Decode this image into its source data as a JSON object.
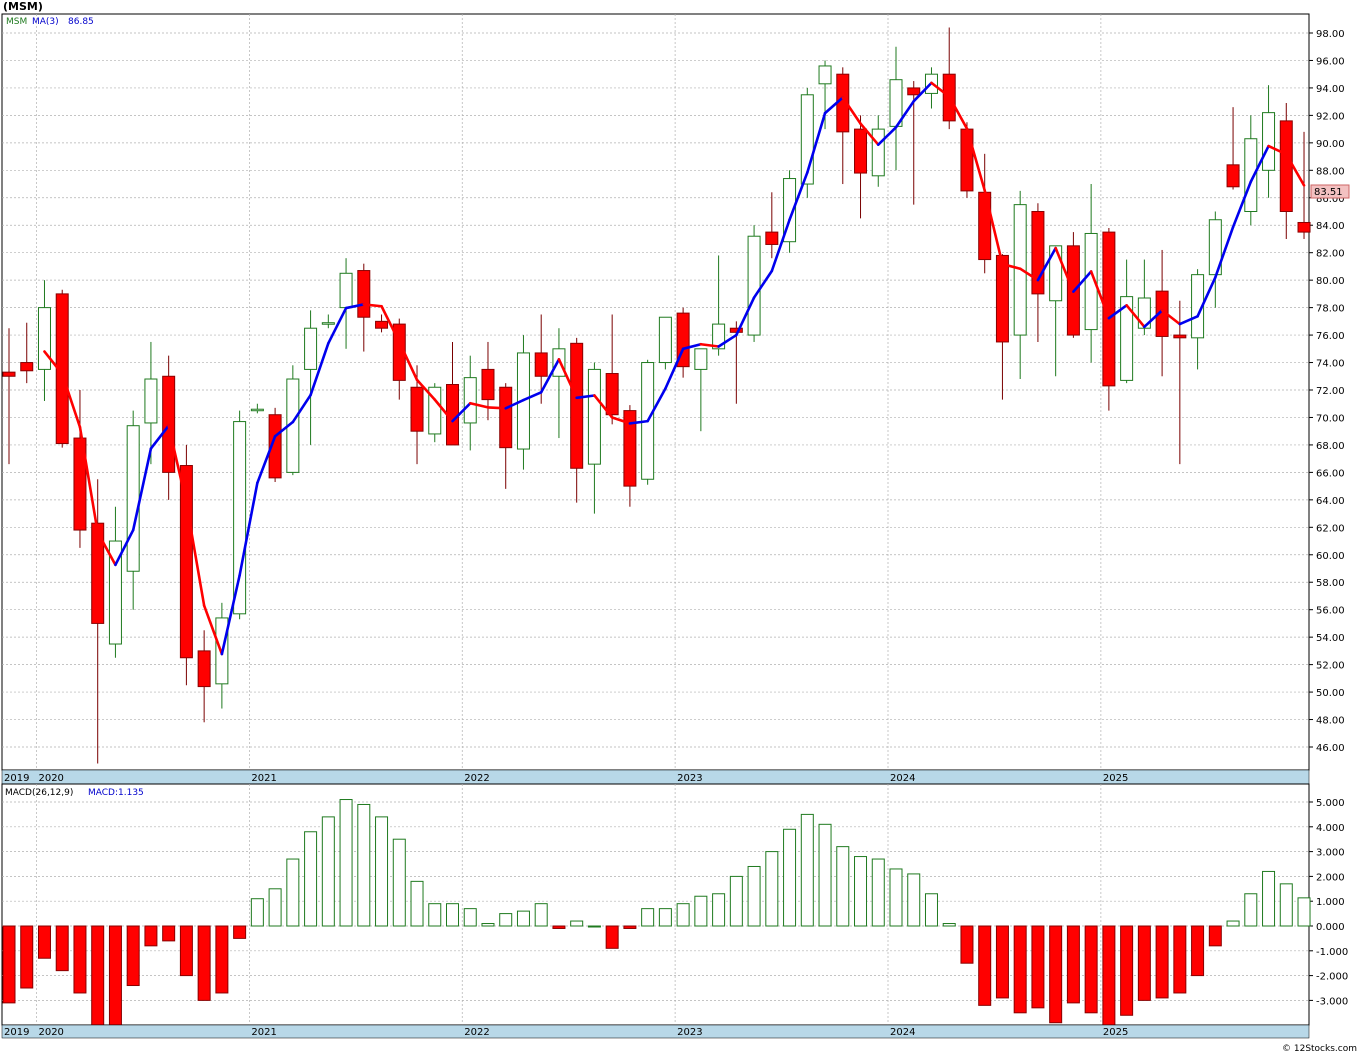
{
  "symbol_title": "(MSM)",
  "watermark": "© 12Stocks.com",
  "colors": {
    "up_candle_stroke": "#1f7a1f",
    "down_candle": "#ff0000",
    "ma_up": "#0000ee",
    "ma_down": "#ff0000",
    "axis_band": "#b8d8e8",
    "grid": "#b0b0b0",
    "macd_pos_stroke": "#1f7a1f",
    "macd_neg": "#ff0000",
    "last_price_box": "#f3c1c1"
  },
  "price_panel": {
    "legend_symbol": "MSM",
    "legend_ma": "MA(3)",
    "legend_ma_value": "86.85",
    "last_price_label": "83.51",
    "y_ticks": [
      "98.00",
      "96.00",
      "94.00",
      "92.00",
      "90.00",
      "88.00",
      "86.00",
      "84.00",
      "82.00",
      "80.00",
      "78.00",
      "76.00",
      "74.00",
      "72.00",
      "70.00",
      "68.00",
      "66.00",
      "64.00",
      "62.00",
      "60.00",
      "58.00",
      "56.00",
      "54.00",
      "52.00",
      "50.00",
      "48.00",
      "46.00"
    ],
    "x_labels": [
      "2019",
      "2020",
      "2021",
      "2022",
      "2023",
      "2024",
      "2025"
    ]
  },
  "macd_panel": {
    "legend_params": "MACD(26,12,9)",
    "legend_value": "MACD:1.135",
    "y_ticks": [
      "5.000",
      "4.000",
      "3.000",
      "2.000",
      "1.000",
      "0.000",
      "-1.000",
      "-2.000",
      "-3.000"
    ],
    "x_labels": [
      "2019",
      "2020",
      "2021",
      "2022",
      "2023",
      "2024",
      "2025"
    ]
  },
  "chart_data": [
    {
      "type": "candlestick",
      "title": "(MSM)",
      "period": "monthly",
      "x_labels": [
        "2019",
        "2020",
        "2021",
        "2022",
        "2023",
        "2024",
        "2025"
      ],
      "ylim": [
        44.5,
        99.5
      ],
      "ma_label": "MA(3)",
      "ma_last": 86.85,
      "last_price": 83.51,
      "candles": [
        {
          "date": "2019-11",
          "o": 73.3,
          "h": 76.5,
          "l": 66.6,
          "c": 73.0
        },
        {
          "date": "2019-12",
          "o": 74.0,
          "h": 76.9,
          "l": 72.5,
          "c": 73.4
        },
        {
          "date": "2020-01",
          "o": 73.5,
          "h": 80.0,
          "l": 71.2,
          "c": 78.0
        },
        {
          "date": "2020-02",
          "o": 79.0,
          "h": 79.3,
          "l": 67.8,
          "c": 68.1
        },
        {
          "date": "2020-03",
          "o": 68.5,
          "h": 72.0,
          "l": 60.5,
          "c": 61.8
        },
        {
          "date": "2020-04",
          "o": 62.3,
          "h": 65.5,
          "l": 44.8,
          "c": 55.0
        },
        {
          "date": "2020-05",
          "o": 53.5,
          "h": 63.5,
          "l": 52.5,
          "c": 61.0
        },
        {
          "date": "2020-06",
          "o": 58.8,
          "h": 70.5,
          "l": 56.0,
          "c": 69.4
        },
        {
          "date": "2020-07",
          "o": 69.6,
          "h": 75.5,
          "l": 66.6,
          "c": 72.8
        },
        {
          "date": "2020-08",
          "o": 73.0,
          "h": 74.5,
          "l": 64.0,
          "c": 66.0
        },
        {
          "date": "2020-09",
          "o": 66.5,
          "h": 68.0,
          "l": 50.5,
          "c": 52.5
        },
        {
          "date": "2020-10",
          "o": 53.0,
          "h": 54.5,
          "l": 47.8,
          "c": 50.4
        },
        {
          "date": "2020-11",
          "o": 50.6,
          "h": 56.5,
          "l": 48.8,
          "c": 55.4
        },
        {
          "date": "2020-12",
          "o": 55.7,
          "h": 70.5,
          "l": 55.3,
          "c": 69.7
        },
        {
          "date": "2021-01",
          "o": 70.5,
          "h": 71.0,
          "l": 70.3,
          "c": 70.6
        },
        {
          "date": "2021-02",
          "o": 70.2,
          "h": 70.7,
          "l": 65.3,
          "c": 65.6
        },
        {
          "date": "2021-03",
          "o": 66.0,
          "h": 73.8,
          "l": 65.8,
          "c": 72.8
        },
        {
          "date": "2021-04",
          "o": 73.5,
          "h": 77.8,
          "l": 68.0,
          "c": 76.5
        },
        {
          "date": "2021-05",
          "o": 76.8,
          "h": 77.5,
          "l": 76.5,
          "c": 76.9
        },
        {
          "date": "2021-06",
          "o": 78.0,
          "h": 81.6,
          "l": 75.0,
          "c": 80.5
        },
        {
          "date": "2021-07",
          "o": 80.7,
          "h": 81.2,
          "l": 74.8,
          "c": 77.3
        },
        {
          "date": "2021-08",
          "o": 77.0,
          "h": 77.5,
          "l": 76.2,
          "c": 76.5
        },
        {
          "date": "2021-09",
          "o": 76.8,
          "h": 77.2,
          "l": 71.3,
          "c": 72.7
        },
        {
          "date": "2021-10",
          "o": 72.2,
          "h": 73.8,
          "l": 66.6,
          "c": 69.0
        },
        {
          "date": "2021-11",
          "o": 68.8,
          "h": 72.5,
          "l": 68.2,
          "c": 72.2
        },
        {
          "date": "2021-12",
          "o": 72.4,
          "h": 75.5,
          "l": 68.0,
          "c": 68.0
        },
        {
          "date": "2022-01",
          "o": 69.6,
          "h": 74.5,
          "l": 67.6,
          "c": 72.9
        },
        {
          "date": "2022-02",
          "o": 73.5,
          "h": 75.5,
          "l": 69.8,
          "c": 71.3
        },
        {
          "date": "2022-03",
          "o": 72.2,
          "h": 72.5,
          "l": 64.8,
          "c": 67.8
        },
        {
          "date": "2022-04",
          "o": 67.7,
          "h": 76.0,
          "l": 66.2,
          "c": 74.7
        },
        {
          "date": "2022-05",
          "o": 74.7,
          "h": 77.5,
          "l": 71.0,
          "c": 73.0
        },
        {
          "date": "2022-06",
          "o": 73.0,
          "h": 76.5,
          "l": 68.5,
          "c": 75.0
        },
        {
          "date": "2022-07",
          "o": 75.4,
          "h": 75.8,
          "l": 63.8,
          "c": 66.3
        },
        {
          "date": "2022-08",
          "o": 66.6,
          "h": 74.0,
          "l": 63.0,
          "c": 73.5
        },
        {
          "date": "2022-09",
          "o": 73.2,
          "h": 77.5,
          "l": 69.5,
          "c": 70.2
        },
        {
          "date": "2022-10",
          "o": 70.5,
          "h": 70.9,
          "l": 63.5,
          "c": 65.0
        },
        {
          "date": "2022-11",
          "o": 65.5,
          "h": 74.2,
          "l": 65.1,
          "c": 74.0
        },
        {
          "date": "2022-12",
          "o": 74.0,
          "h": 77.0,
          "l": 73.5,
          "c": 77.3
        },
        {
          "date": "2023-01",
          "o": 77.6,
          "h": 78.0,
          "l": 72.9,
          "c": 73.7
        },
        {
          "date": "2023-02",
          "o": 73.5,
          "h": 75.0,
          "l": 69.0,
          "c": 75.0
        },
        {
          "date": "2023-03",
          "o": 75.0,
          "h": 81.8,
          "l": 74.5,
          "c": 76.8
        },
        {
          "date": "2023-04",
          "o": 76.5,
          "h": 77.0,
          "l": 71.0,
          "c": 76.2
        },
        {
          "date": "2023-05",
          "o": 76.0,
          "h": 84.0,
          "l": 75.5,
          "c": 83.2
        },
        {
          "date": "2023-06",
          "o": 83.5,
          "h": 86.4,
          "l": 81.6,
          "c": 82.6
        },
        {
          "date": "2023-07",
          "o": 82.8,
          "h": 88.0,
          "l": 82.0,
          "c": 87.4
        },
        {
          "date": "2023-08",
          "o": 87.0,
          "h": 94.0,
          "l": 86.0,
          "c": 93.5
        },
        {
          "date": "2023-09",
          "o": 94.3,
          "h": 96.0,
          "l": 91.0,
          "c": 95.6
        },
        {
          "date": "2023-10",
          "o": 95.0,
          "h": 95.5,
          "l": 87.0,
          "c": 90.8
        },
        {
          "date": "2023-11",
          "o": 91.0,
          "h": 92.0,
          "l": 84.5,
          "c": 87.8
        },
        {
          "date": "2023-12",
          "o": 87.6,
          "h": 92.0,
          "l": 86.8,
          "c": 91.0
        },
        {
          "date": "2024-01",
          "o": 91.2,
          "h": 97.0,
          "l": 88.0,
          "c": 94.6
        },
        {
          "date": "2024-02",
          "o": 94.0,
          "h": 94.5,
          "l": 85.5,
          "c": 93.5
        },
        {
          "date": "2024-03",
          "o": 93.6,
          "h": 95.5,
          "l": 92.5,
          "c": 95.0
        },
        {
          "date": "2024-04",
          "o": 95.0,
          "h": 98.4,
          "l": 91.0,
          "c": 91.6
        },
        {
          "date": "2024-05",
          "o": 91.0,
          "h": 91.5,
          "l": 86.0,
          "c": 86.5
        },
        {
          "date": "2024-06",
          "o": 86.4,
          "h": 89.2,
          "l": 80.5,
          "c": 81.5
        },
        {
          "date": "2024-07",
          "o": 81.8,
          "h": 81.9,
          "l": 71.3,
          "c": 75.5
        },
        {
          "date": "2024-08",
          "o": 76.0,
          "h": 86.5,
          "l": 72.8,
          "c": 85.5
        },
        {
          "date": "2024-09",
          "o": 85.0,
          "h": 85.6,
          "l": 75.5,
          "c": 79.0
        },
        {
          "date": "2024-10",
          "o": 78.5,
          "h": 82.5,
          "l": 73.0,
          "c": 82.5
        },
        {
          "date": "2024-11",
          "o": 82.5,
          "h": 83.5,
          "l": 75.8,
          "c": 76.0
        },
        {
          "date": "2024-12",
          "o": 76.4,
          "h": 87.0,
          "l": 74.0,
          "c": 83.4
        },
        {
          "date": "2025-01",
          "o": 83.5,
          "h": 83.8,
          "l": 70.5,
          "c": 72.3
        },
        {
          "date": "2025-02",
          "o": 72.7,
          "h": 81.5,
          "l": 72.5,
          "c": 78.8
        },
        {
          "date": "2025-03",
          "o": 76.5,
          "h": 81.5,
          "l": 76.0,
          "c": 78.7
        },
        {
          "date": "2025-04",
          "o": 79.2,
          "h": 82.2,
          "l": 73.0,
          "c": 75.9
        },
        {
          "date": "2025-05",
          "o": 76.0,
          "h": 78.5,
          "l": 66.6,
          "c": 75.8
        },
        {
          "date": "2025-06",
          "o": 75.8,
          "h": 80.8,
          "l": 73.5,
          "c": 80.4
        },
        {
          "date": "2025-07",
          "o": 80.4,
          "h": 85.0,
          "l": 78.0,
          "c": 84.4
        },
        {
          "date": "2025-08",
          "o": 88.4,
          "h": 92.6,
          "l": 86.6,
          "c": 86.8
        },
        {
          "date": "2025-09",
          "o": 85.0,
          "h": 92.0,
          "l": 84.0,
          "c": 90.3
        },
        {
          "date": "2025-10",
          "o": 88.0,
          "h": 94.2,
          "l": 86.0,
          "c": 92.2
        },
        {
          "date": "2025-11",
          "o": 91.6,
          "h": 92.9,
          "l": 83.0,
          "c": 85.0
        },
        {
          "date": "2025-12",
          "o": 84.2,
          "h": 90.8,
          "l": 83.0,
          "c": 83.5
        }
      ]
    },
    {
      "type": "bar",
      "title": "MACD(26,12,9)",
      "value_label": "MACD:1.135",
      "ylim": [
        -4.0,
        5.5
      ],
      "values": [
        -3.1,
        -2.5,
        -1.3,
        -1.8,
        -2.7,
        -4.0,
        -4.0,
        -2.4,
        -0.8,
        -0.6,
        -2.0,
        -3.0,
        -2.7,
        -0.5,
        1.1,
        1.5,
        2.7,
        3.8,
        4.4,
        5.1,
        4.9,
        4.4,
        3.5,
        1.8,
        0.9,
        0.9,
        0.7,
        0.1,
        0.5,
        0.6,
        0.9,
        -0.1,
        0.2,
        0.0,
        -0.9,
        -0.1,
        0.7,
        0.7,
        0.9,
        1.2,
        1.3,
        2.0,
        2.4,
        3.0,
        3.9,
        4.5,
        4.1,
        3.2,
        2.8,
        2.7,
        2.3,
        2.1,
        1.3,
        0.1,
        -1.5,
        -3.2,
        -2.9,
        -3.5,
        -3.3,
        -3.9,
        -3.1,
        -3.5,
        -4.0,
        -3.6,
        -3.0,
        -2.9,
        -2.7,
        -2.0,
        -0.8,
        0.2,
        1.3,
        2.2,
        1.7,
        1.135
      ]
    }
  ]
}
